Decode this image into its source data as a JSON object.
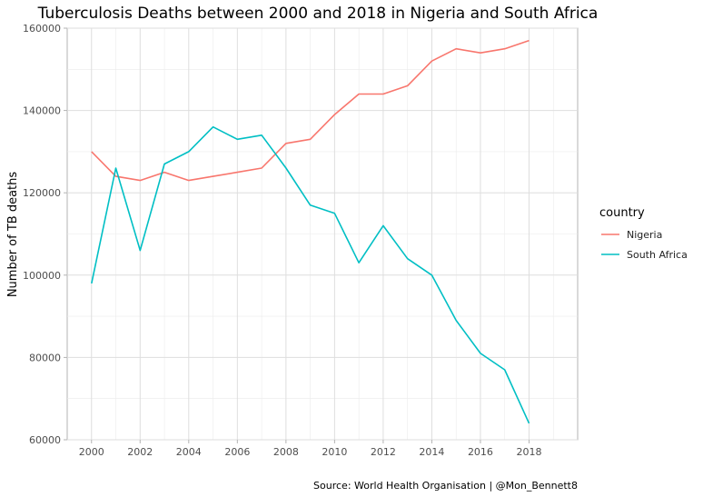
{
  "chart_data": {
    "type": "line",
    "title": "Tuberculosis Deaths between 2000 and 2018 in Nigeria and South Africa",
    "ylabel": "Number of TB deaths",
    "xlabel": "",
    "caption": "Source: World Health Organisation | @Mon_Bennett8",
    "legend_title": "country",
    "legend_position": "right",
    "grid": true,
    "xlim": [
      1999,
      2020
    ],
    "ylim": [
      60000,
      160000
    ],
    "x_ticks": [
      2000,
      2002,
      2004,
      2006,
      2008,
      2010,
      2012,
      2014,
      2016,
      2018
    ],
    "y_ticks": [
      60000,
      80000,
      100000,
      120000,
      140000,
      160000
    ],
    "x": [
      2000,
      2001,
      2002,
      2003,
      2004,
      2005,
      2006,
      2007,
      2008,
      2009,
      2010,
      2011,
      2012,
      2013,
      2014,
      2015,
      2016,
      2017,
      2018
    ],
    "series": [
      {
        "name": "Nigeria",
        "color": "#F8766D",
        "values": [
          130000,
          124000,
          123000,
          125000,
          123000,
          124000,
          125000,
          126000,
          132000,
          133000,
          139000,
          144000,
          144000,
          146000,
          152000,
          155000,
          154000,
          155000,
          157000
        ]
      },
      {
        "name": "South Africa",
        "color": "#00BFC4",
        "values": [
          98000,
          126000,
          106000,
          127000,
          130000,
          136000,
          133000,
          134000,
          126000,
          117000,
          115000,
          103000,
          112000,
          104000,
          100000,
          89000,
          81000,
          77000,
          64000
        ]
      }
    ]
  }
}
